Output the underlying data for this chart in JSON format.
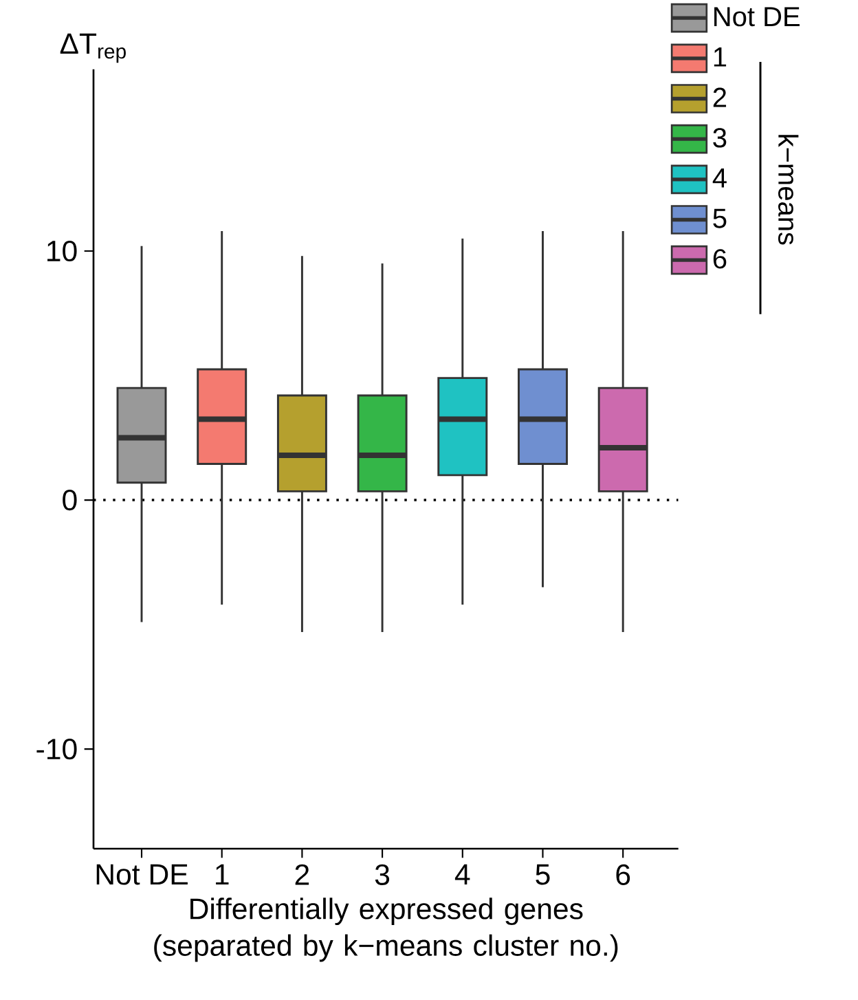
{
  "chart_data": {
    "type": "box",
    "xlabel": "Differentially expressed genes (separated by k−means cluster no.)",
    "ylabel": "ΔT$_{rep}$",
    "categories": [
      "Not DE",
      "1",
      "2",
      "3",
      "4",
      "5",
      "6"
    ],
    "series": [
      {
        "name": "Not DE",
        "color": "#999999",
        "boxes": [
          {
            "low": -4.9,
            "q1": 0.7,
            "median": 2.5,
            "q3": 4.5,
            "high": 10.2
          },
          null,
          null,
          null,
          null,
          null,
          null
        ]
      },
      {
        "name": "1",
        "color": "#f47a70",
        "boxes": [
          null,
          {
            "low": -4.2,
            "q1": 1.45,
            "median": 3.25,
            "q3": 5.25,
            "high": 10.8
          },
          null,
          null,
          null,
          null,
          null
        ]
      },
      {
        "name": "2",
        "color": "#b5a02e",
        "boxes": [
          null,
          null,
          {
            "low": -5.3,
            "q1": 0.35,
            "median": 1.8,
            "q3": 4.2,
            "high": 9.8
          },
          null,
          null,
          null,
          null
        ]
      },
      {
        "name": "3",
        "color": "#34b648",
        "boxes": [
          null,
          null,
          null,
          {
            "low": -5.3,
            "q1": 0.35,
            "median": 1.8,
            "q3": 4.2,
            "high": 9.5
          },
          null,
          null,
          null
        ]
      },
      {
        "name": "4",
        "color": "#1fc2c2",
        "boxes": [
          null,
          null,
          null,
          null,
          {
            "low": -4.2,
            "q1": 1.0,
            "median": 3.25,
            "q3": 4.9,
            "high": 10.5
          },
          null,
          null
        ]
      },
      {
        "name": "5",
        "color": "#6f8fd0",
        "boxes": [
          null,
          null,
          null,
          null,
          null,
          {
            "low": -3.5,
            "q1": 1.45,
            "median": 3.25,
            "q3": 5.25,
            "high": 10.8
          },
          null
        ]
      },
      {
        "name": "6",
        "color": "#cc6aae",
        "boxes": [
          null,
          null,
          null,
          null,
          null,
          null,
          {
            "low": -5.3,
            "q1": 0.35,
            "median": 2.1,
            "q3": 4.5,
            "high": 10.8
          }
        ]
      }
    ],
    "ylim": [
      -14,
      17.3
    ],
    "yticks": [
      -10,
      0,
      10
    ],
    "ref_lines": [
      {
        "axis": "y",
        "value": 0,
        "line_style": "dotted"
      }
    ],
    "legend": "top right",
    "annotations": [
      "k−means"
    ]
  }
}
